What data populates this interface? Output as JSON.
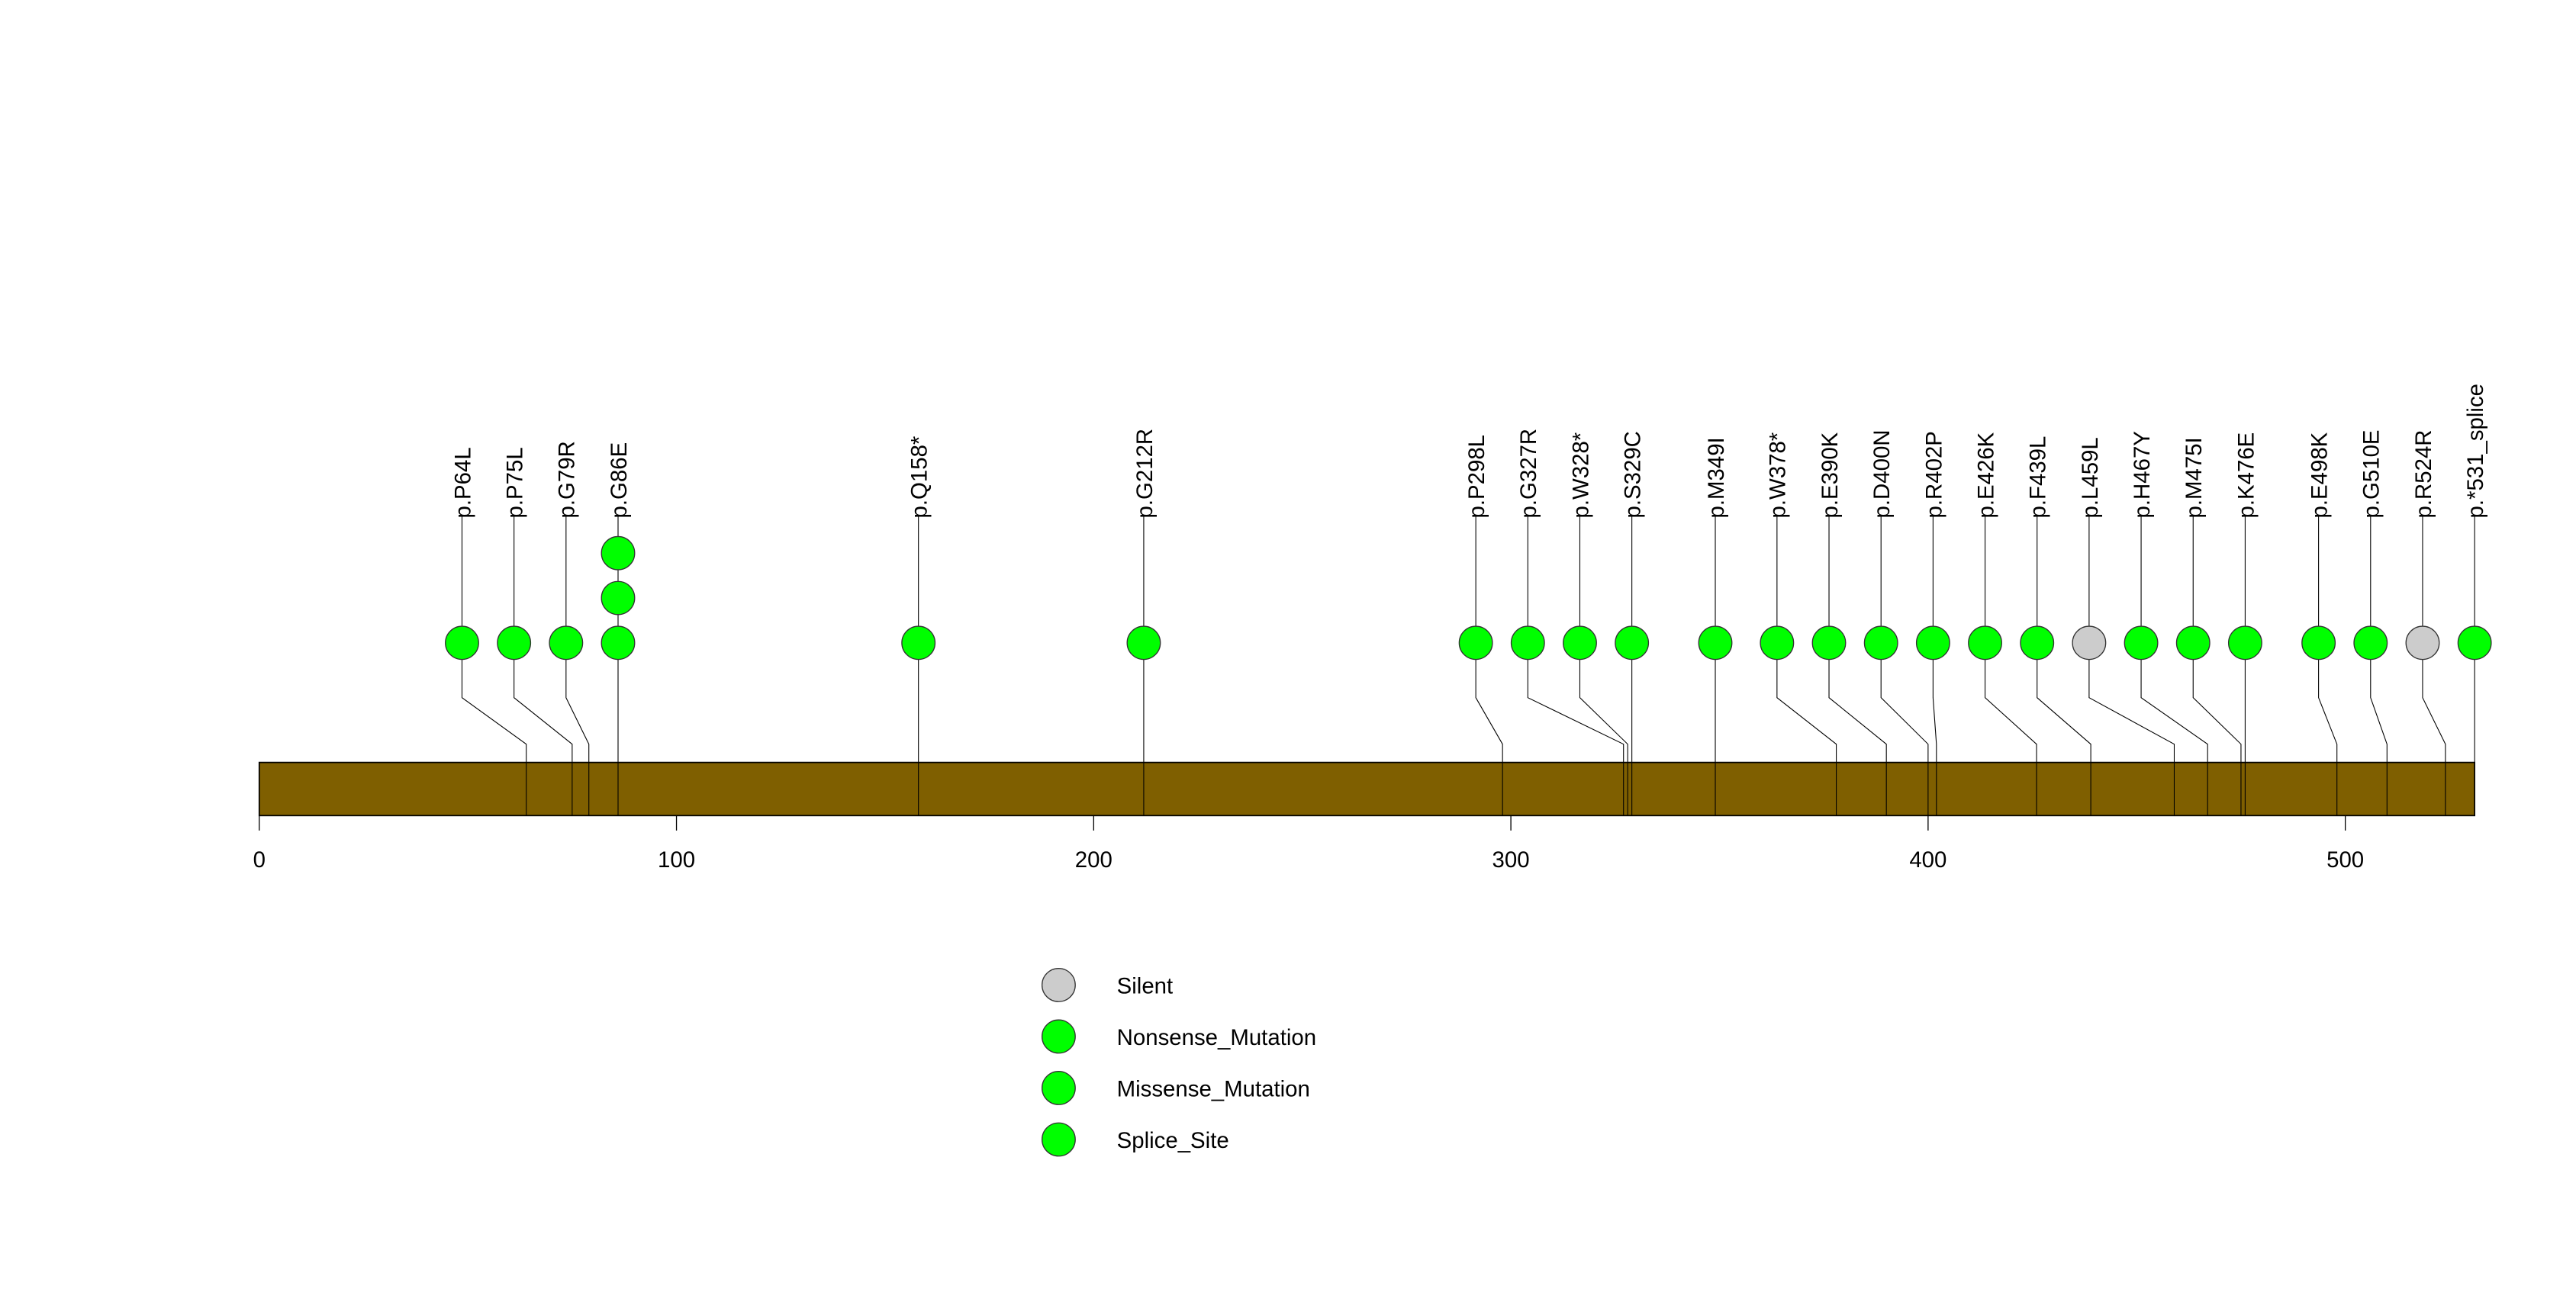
{
  "chart_data": {
    "type": "lollipop",
    "title": "",
    "xlabel": "",
    "ylabel": "",
    "xlim": [
      0,
      531
    ],
    "protein_length": 531,
    "x_ticks": [
      0,
      100,
      200,
      300,
      400,
      500
    ],
    "x_tick_labels": [
      "0",
      "100",
      "200",
      "300",
      "400",
      "500"
    ],
    "colors": {
      "bar": "#7f5f00",
      "Silent": "#cccccc",
      "Nonsense_Mutation": "#00ff00",
      "Missense_Mutation": "#00ff00",
      "Splice_Site": "#00ff00"
    },
    "mutations": [
      {
        "label": "p.P64L",
        "position": 64,
        "type": "Missense_Mutation",
        "count": 1
      },
      {
        "label": "p.P75L",
        "position": 75,
        "type": "Missense_Mutation",
        "count": 1
      },
      {
        "label": "p.G79R",
        "position": 79,
        "type": "Missense_Mutation",
        "count": 1
      },
      {
        "label": "p.G86E",
        "position": 86,
        "type": "Missense_Mutation",
        "count": 3
      },
      {
        "label": "p.Q158*",
        "position": 158,
        "type": "Nonsense_Mutation",
        "count": 1
      },
      {
        "label": "p.G212R",
        "position": 212,
        "type": "Missense_Mutation",
        "count": 1
      },
      {
        "label": "p.P298L",
        "position": 298,
        "type": "Missense_Mutation",
        "count": 1
      },
      {
        "label": "p.G327R",
        "position": 327,
        "type": "Missense_Mutation",
        "count": 1
      },
      {
        "label": "p.W328*",
        "position": 328,
        "type": "Nonsense_Mutation",
        "count": 1
      },
      {
        "label": "p.S329C",
        "position": 329,
        "type": "Missense_Mutation",
        "count": 1
      },
      {
        "label": "p.M349I",
        "position": 349,
        "type": "Missense_Mutation",
        "count": 1
      },
      {
        "label": "p.W378*",
        "position": 378,
        "type": "Nonsense_Mutation",
        "count": 1
      },
      {
        "label": "p.E390K",
        "position": 390,
        "type": "Missense_Mutation",
        "count": 1
      },
      {
        "label": "p.D400N",
        "position": 400,
        "type": "Missense_Mutation",
        "count": 1
      },
      {
        "label": "p.R402P",
        "position": 402,
        "type": "Missense_Mutation",
        "count": 1
      },
      {
        "label": "p.E426K",
        "position": 426,
        "type": "Missense_Mutation",
        "count": 1
      },
      {
        "label": "p.F439L",
        "position": 439,
        "type": "Missense_Mutation",
        "count": 1
      },
      {
        "label": "p.L459L",
        "position": 459,
        "type": "Silent",
        "count": 1
      },
      {
        "label": "p.H467Y",
        "position": 467,
        "type": "Missense_Mutation",
        "count": 1
      },
      {
        "label": "p.M475I",
        "position": 475,
        "type": "Missense_Mutation",
        "count": 1
      },
      {
        "label": "p.K476E",
        "position": 476,
        "type": "Missense_Mutation",
        "count": 1
      },
      {
        "label": "p.E498K",
        "position": 498,
        "type": "Missense_Mutation",
        "count": 1
      },
      {
        "label": "p.G510E",
        "position": 510,
        "type": "Missense_Mutation",
        "count": 1
      },
      {
        "label": "p.R524R",
        "position": 524,
        "type": "Silent",
        "count": 1
      },
      {
        "label": "p.*531_splice",
        "position": 531,
        "type": "Splice_Site",
        "count": 1
      }
    ],
    "legend": {
      "placement": "bottom-center",
      "entries": [
        {
          "label": "Silent",
          "color": "#cccccc"
        },
        {
          "label": "Nonsense_Mutation",
          "color": "#00ff00"
        },
        {
          "label": "Missense_Mutation",
          "color": "#00ff00"
        },
        {
          "label": "Splice_Site",
          "color": "#00ff00"
        }
      ]
    }
  }
}
